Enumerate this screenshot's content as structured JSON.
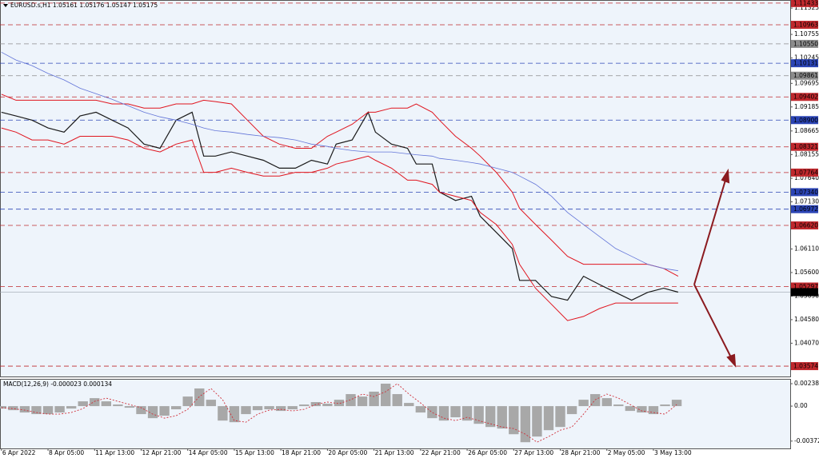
{
  "chart_data": [
    {
      "type": "line",
      "title": "EURUSD.s,H1  1.05161 1.05176 1.05147 1.05175",
      "x": [
        0,
        10,
        21,
        32,
        43,
        54,
        65,
        76,
        87,
        98,
        109,
        120,
        131,
        139,
        147,
        158,
        169,
        180,
        191,
        202,
        213,
        224,
        230,
        241,
        252,
        257,
        268,
        279,
        285,
        296,
        301,
        312,
        323,
        329,
        340,
        351,
        356,
        367,
        378,
        389,
        400,
        411,
        422,
        433,
        444,
        455,
        465
      ],
      "series": [
        {
          "color": "#1a1a1a",
          "width": 1.2,
          "values": [
            1.0907,
            1.0899,
            1.089,
            1.0873,
            1.0864,
            1.0899,
            1.0907,
            1.089,
            1.0873,
            1.0838,
            1.0829,
            1.089,
            1.0907,
            1.0812,
            1.0812,
            1.0821,
            1.0812,
            1.0803,
            1.0786,
            1.0786,
            1.0803,
            1.0795,
            1.0838,
            1.0847,
            1.0907,
            1.0864,
            1.0838,
            1.0829,
            1.0795,
            1.0795,
            1.0734,
            1.0716,
            1.0725,
            1.0682,
            1.0647,
            1.0612,
            1.0543,
            1.0543,
            1.0508,
            1.05,
            1.0552,
            1.0534,
            1.0517,
            1.05,
            1.0517,
            1.0526,
            1.05175
          ]
        },
        {
          "color": "#e0141e",
          "width": 1,
          "values": [
            1.0946,
            1.0933,
            1.0933,
            1.0933,
            1.0933,
            1.0933,
            1.0933,
            1.0925,
            1.0925,
            1.0916,
            1.0916,
            1.0925,
            1.0925,
            1.0933,
            1.093,
            1.0925,
            1.089,
            1.0855,
            1.0838,
            1.0829,
            1.0829,
            1.0855,
            1.0864,
            1.0881,
            1.0907,
            1.0907,
            1.0916,
            1.0916,
            1.0925,
            1.0907,
            1.089,
            1.0855,
            1.0829,
            1.0812,
            1.0777,
            1.0734,
            1.0699,
            1.0664,
            1.063,
            1.0595,
            1.0578,
            1.0578,
            1.0578,
            1.0578,
            1.0578,
            1.0569,
            1.0552
          ]
        },
        {
          "color": "#e0141e",
          "width": 1,
          "values": [
            1.0873,
            1.0864,
            1.0847,
            1.0847,
            1.0838,
            1.0855,
            1.0855,
            1.0855,
            1.0847,
            1.0829,
            1.0821,
            1.0838,
            1.0847,
            1.0777,
            1.0777,
            1.0786,
            1.0777,
            1.0769,
            1.0769,
            1.0777,
            1.0777,
            1.0786,
            1.0795,
            1.0803,
            1.0812,
            1.0803,
            1.0786,
            1.076,
            1.076,
            1.0751,
            1.0734,
            1.0725,
            1.0716,
            1.069,
            1.0664,
            1.0621,
            1.0578,
            1.0526,
            1.0491,
            1.0456,
            1.0465,
            1.0482,
            1.0494,
            1.0494,
            1.0494,
            1.0494,
            1.0494
          ]
        },
        {
          "color": "#6274d8",
          "width": 0.8,
          "values": [
            1.1037,
            1.102,
            1.1008,
            1.0991,
            1.0977,
            1.0959,
            1.0947,
            1.0935,
            1.0921,
            1.0907,
            1.0897,
            1.089,
            1.0881,
            1.0873,
            1.0867,
            1.0864,
            1.0859,
            1.0855,
            1.0852,
            1.0847,
            1.0838,
            1.0833,
            1.0829,
            1.0824,
            1.0821,
            1.0821,
            1.0821,
            1.0817,
            1.0815,
            1.0812,
            1.0807,
            1.0803,
            1.0798,
            1.0795,
            1.0786,
            1.0777,
            1.0769,
            1.0751,
            1.0725,
            1.069,
            1.0664,
            1.0638,
            1.0612,
            1.0595,
            1.0578,
            1.0569,
            1.0564
          ]
        }
      ],
      "xlim": [
        -1,
        542
      ],
      "ylim": [
        1.0335,
        1.115
      ],
      "xticks": [
        {
          "value": 0,
          "label": "6 Apr 2022"
        },
        {
          "value": 32,
          "label": "8 Apr 05:00"
        },
        {
          "value": 64,
          "label": "11 Apr 13:00"
        },
        {
          "value": 96,
          "label": "12 Apr 21:00"
        },
        {
          "value": 128,
          "label": "14 Apr 05:00"
        },
        {
          "value": 160,
          "label": "15 Apr 13:00"
        },
        {
          "value": 192,
          "label": "18 Apr 21:00"
        },
        {
          "value": 224,
          "label": "20 Apr 05:00"
        },
        {
          "value": 256,
          "label": "21 Apr 13:00"
        },
        {
          "value": 288,
          "label": "22 Apr 21:00"
        },
        {
          "value": 320,
          "label": "26 Apr 05:00"
        },
        {
          "value": 352,
          "label": "27 Apr 13:00"
        },
        {
          "value": 384,
          "label": "28 Apr 21:00"
        },
        {
          "value": 416,
          "label": "2 May 05:00"
        },
        {
          "value": 448,
          "label": "3 May 13:00"
        }
      ],
      "yticks": [
        1.11325,
        1.10755,
        1.10245,
        1.09695,
        1.09185,
        1.08665,
        1.08155,
        {
          "value": 1.0764,
          "label": "1.07640"
        },
        {
          "value": 1.0713,
          "label": "1.07130"
        },
        {
          "value": 1.0611,
          "label": "1.06110"
        },
        {
          "value": 1.056,
          "label": "1.05600"
        },
        {
          "value": 1.0509,
          "label": "1.05090"
        },
        {
          "value": 1.0458,
          "label": "1.04580"
        },
        {
          "value": 1.0407,
          "label": "1.04070"
        }
      ],
      "levels": [
        {
          "value": 1.11433,
          "color": "#c0282d"
        },
        {
          "value": 1.10963,
          "color": "#c0282d"
        },
        {
          "value": 1.1055,
          "label": "1.10550",
          "color": "#8c8c8c"
        },
        {
          "value": 1.10131,
          "color": "#2b44b5"
        },
        {
          "value": 1.09861,
          "color": "#8c8c8c"
        },
        {
          "value": 1.09402,
          "color": "#c0282d"
        },
        {
          "value": 1.089,
          "label": "1.08900",
          "color": "#2b44b5"
        },
        {
          "value": 1.08321,
          "color": "#c0282d"
        },
        {
          "value": 1.07764,
          "color": "#c0282d"
        },
        {
          "value": 1.0734,
          "label": "1.07340",
          "color": "#2b44b5"
        },
        {
          "value": 1.06972,
          "color": "#2b44b5"
        },
        {
          "value": 1.0662,
          "label": "1.06620",
          "color": "#c0282d"
        },
        {
          "value": 1.05297,
          "color": "#c0282d"
        },
        {
          "value": 1.03574,
          "color": "#c0282d"
        }
      ],
      "current": {
        "value": 1.05175,
        "color": "#000000"
      }
    },
    {
      "type": "bar",
      "title": "MACD(12,26,9) -0.000023 0.000134",
      "x": [
        0,
        8,
        16,
        24,
        32,
        40,
        48,
        56,
        64,
        72,
        80,
        88,
        96,
        104,
        112,
        120,
        128,
        136,
        144,
        152,
        160,
        168,
        176,
        184,
        192,
        200,
        208,
        216,
        224,
        232,
        240,
        248,
        256,
        264,
        272,
        280,
        288,
        296,
        304,
        312,
        320,
        328,
        336,
        344,
        352,
        360,
        368,
        376,
        384,
        392,
        400,
        408,
        416,
        424,
        432,
        440,
        448,
        456,
        464
      ],
      "values": [
        -0.00026,
        -0.00043,
        -0.00068,
        -0.00085,
        -0.00085,
        -0.00068,
        -0.00026,
        0.00051,
        0.00085,
        0.00051,
        0.00017,
        -0.00017,
        -0.00085,
        -0.00128,
        -0.00102,
        -0.00034,
        0.00102,
        0.00188,
        0.00068,
        -0.00154,
        -0.00171,
        -0.00085,
        -0.00043,
        -0.00034,
        -0.00051,
        -0.00034,
        0.00017,
        0.00043,
        0.00026,
        0.00068,
        0.00128,
        0.00102,
        0.00154,
        0.00239,
        0.00128,
        0.00034,
        -0.00068,
        -0.00128,
        -0.00154,
        -0.00119,
        -0.00154,
        -0.00188,
        -0.00222,
        -0.00239,
        -0.00299,
        -0.00384,
        -0.00324,
        -0.00256,
        -0.00222,
        -0.00085,
        0.00068,
        0.00128,
        0.00085,
        0.00017,
        -0.00051,
        -0.00068,
        -0.00085,
        0.00017,
        0.00068
      ],
      "color": "#a8a8a8",
      "signal": {
        "color": "#d0303a",
        "values": [
          -0.00017,
          -0.00026,
          -0.00043,
          -0.00068,
          -0.00085,
          -0.00085,
          -0.00068,
          -0.00026,
          0.00051,
          0.00085,
          0.00051,
          0.00017,
          -0.00017,
          -0.00085,
          -0.00128,
          -0.00102,
          -0.00034,
          0.00102,
          0.00188,
          0.00068,
          -0.00154,
          -0.00171,
          -0.00085,
          -0.00043,
          -0.00034,
          -0.00051,
          -0.00034,
          0.00017,
          0.00043,
          0.00026,
          0.00068,
          0.00128,
          0.00102,
          0.00154,
          0.00239,
          0.00128,
          0.00034,
          -0.00068,
          -0.00128,
          -0.00154,
          -0.00119,
          -0.00154,
          -0.00188,
          -0.00222,
          -0.00239,
          -0.00299,
          -0.00384,
          -0.00324,
          -0.00256,
          -0.00222,
          -0.00085,
          0.00068,
          0.00128,
          0.00085,
          0.00017,
          -0.00051,
          -0.00068,
          -0.00085,
          0.00017
        ]
      },
      "xlim": [
        -1,
        542
      ],
      "ylim": [
        -0.0045,
        0.0029
      ],
      "yticks": [
        0.002387,
        {
          "value": 0,
          "label": "0.00"
        },
        -0.003721
      ]
    }
  ]
}
